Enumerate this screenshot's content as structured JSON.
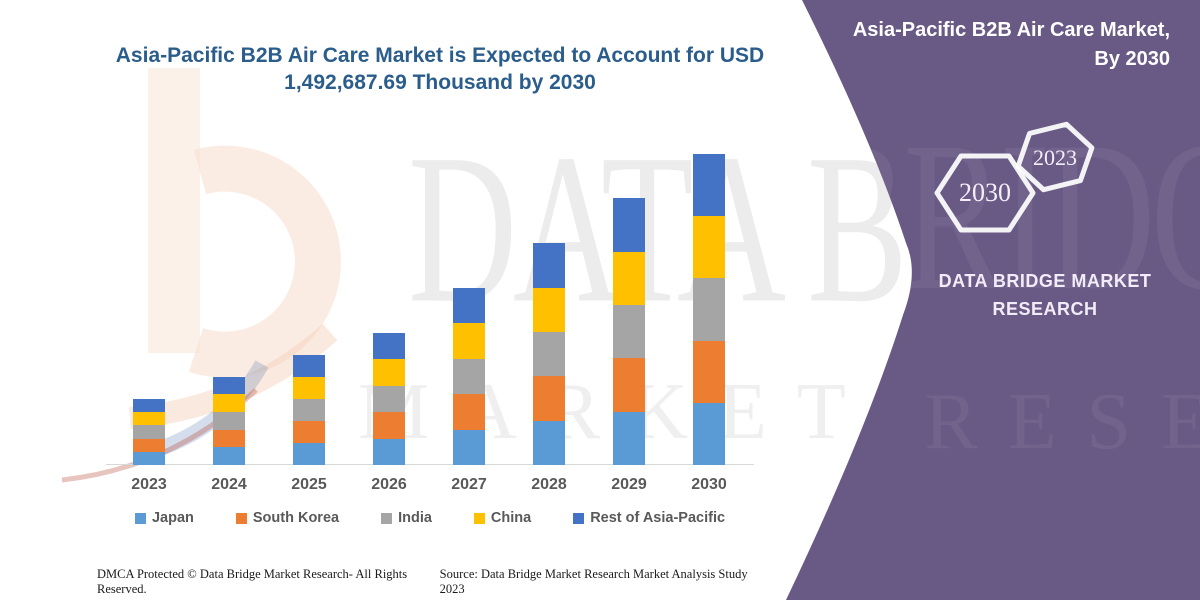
{
  "left_panel": {
    "title": "Asia-Pacific B2B Air Care Market is Expected to Account for USD 1,492,687.69 Thousand by 2030",
    "footer_left": "DMCA Protected © Data Bridge Market Research-  All Rights Reserved.",
    "footer_right": "Source: Data Bridge Market Research  Market Analysis Study 2023",
    "watermark_line1": "DATA BRIDGE",
    "watermark_line2": "MARKET RESEARCH"
  },
  "right_panel": {
    "background_color": "#695a85",
    "title": "Asia-Pacific B2B Air Care Market, By 2030",
    "hexagon_large_label": "2030",
    "hexagon_small_label": "2023",
    "brand_line1": "DATA BRIDGE MARKET",
    "brand_line2": "RESEARCH"
  },
  "chart_data": {
    "type": "bar",
    "stacked": true,
    "title": "Asia-Pacific B2B Air Care Market is Expected to Account for USD 1,492,687.69 Thousand by 2030",
    "unit": "USD Thousand",
    "categories": [
      "2023",
      "2024",
      "2025",
      "2026",
      "2027",
      "2028",
      "2029",
      "2030"
    ],
    "series": [
      {
        "name": "Japan",
        "color": "#5B9BD5",
        "values": [
          63560,
          84740,
          105940,
          127120,
          170460,
          212820,
          256160,
          298537.54
        ]
      },
      {
        "name": "South Korea",
        "color": "#ED7D31",
        "values": [
          63560,
          84740,
          105940,
          127120,
          170460,
          212820,
          256160,
          298537.54
        ]
      },
      {
        "name": "India",
        "color": "#A5A5A5",
        "values": [
          63560,
          84740,
          105940,
          127120,
          170460,
          212820,
          256160,
          298537.54
        ]
      },
      {
        "name": "China",
        "color": "#FFC000",
        "values": [
          63560,
          84740,
          105940,
          127120,
          170460,
          212820,
          256160,
          298537.54
        ]
      },
      {
        "name": "Rest of Asia-Pacific",
        "color": "#4472C4",
        "values": [
          63560,
          84740,
          105940,
          127120,
          170460,
          212820,
          256160,
          298537.54
        ]
      }
    ],
    "totals": [
      317800,
      423700,
      529700,
      635600,
      852300,
      1064100,
      1280800,
      1492687.69
    ],
    "ylim": [
      0,
      1492687.69
    ],
    "gridlines": false,
    "axis_labels_shown": false,
    "legend_position": "bottom",
    "note": "Segment values estimated from bar pixel heights; 2030 total given in chart title."
  }
}
